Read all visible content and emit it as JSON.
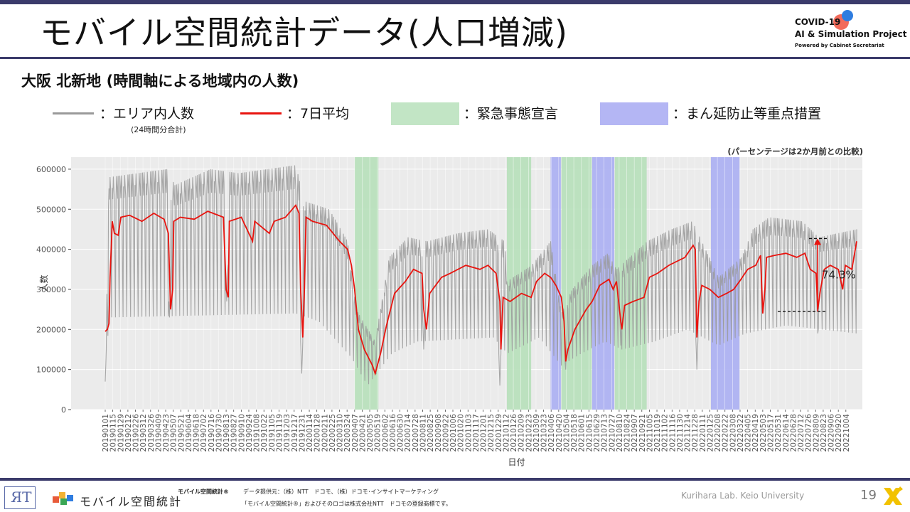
{
  "header": {
    "title": "モバイル空間統計データ(人口増減)",
    "logo_line1": "COVID-19",
    "logo_line2": "AI & Simulation Project",
    "logo_line3": "Powered by Cabinet Secretariat"
  },
  "subtitle": "大阪 北新地 (時間軸による地域内の人数)",
  "legend": {
    "area_count_label": "：エリア内人数",
    "area_count_note": "(24時間分合計)",
    "avg7_label": "：7日平均",
    "emergency_label": "：緊急事態宣言",
    "priority_label": "：まん延防止等重点措置"
  },
  "colors": {
    "raw_series": "#9a9a9a",
    "avg_series": "#e8140f",
    "emergency_band": "#b9e0bd",
    "priority_band": "#aeb2f2",
    "panel_bg": "#ebebeb",
    "header_rule": "#3b3b6b"
  },
  "chart_data": {
    "type": "line",
    "percent_note": "(パーセンテージは2か月前との比較)",
    "xlabel": "日付",
    "ylabel": "人数",
    "ylim": [
      0,
      630000
    ],
    "yticks": [
      0,
      100000,
      200000,
      300000,
      400000,
      500000,
      600000
    ],
    "ytick_labels": [
      "0",
      "100000",
      "200000",
      "300000",
      "400000",
      "500000",
      "600000"
    ],
    "x_start": "2019-01-01",
    "x_end": "2022-10-24",
    "x_tick_labels": [
      "20190101",
      "20190115",
      "20190129",
      "20190212",
      "20190226",
      "20190312",
      "20190326",
      "20190409",
      "20190423",
      "20190507",
      "20190521",
      "20190604",
      "20190618",
      "20190702",
      "20190716",
      "20190730",
      "20190813",
      "20190827",
      "20190910",
      "20190924",
      "20191008",
      "20191022",
      "20191105",
      "20191119",
      "20191203",
      "20191217",
      "20191231",
      "20200114",
      "20200128",
      "20200211",
      "20200225",
      "20200310",
      "20200324",
      "20200407",
      "20200421",
      "20200505",
      "20200519",
      "20200602",
      "20200616",
      "20200630",
      "20200714",
      "20200728",
      "20200811",
      "20200825",
      "20200908",
      "20200922",
      "20201006",
      "20201020",
      "20201103",
      "20201117",
      "20201201",
      "20201215",
      "20201229",
      "20210112",
      "20210126",
      "20210209",
      "20210223",
      "20210309",
      "20210323",
      "20210406",
      "20210420",
      "20210504",
      "20210518",
      "20210601",
      "20210615",
      "20210629",
      "20210713",
      "20210727",
      "20210810",
      "20210824",
      "20210907",
      "20210921",
      "20211005",
      "20211019",
      "20211102",
      "20211116",
      "20211130",
      "20211214",
      "20211228",
      "20220111",
      "20220125",
      "20220208",
      "20220222",
      "20220308",
      "20220322",
      "20220405",
      "20220419",
      "20220503",
      "20220517",
      "20220531",
      "20220614",
      "20220628",
      "20220712",
      "20220726",
      "20220809",
      "20220823",
      "20220906",
      "20220920",
      "20221004"
    ],
    "emergency_periods": [
      [
        "2020-04-07",
        "2020-05-21"
      ],
      [
        "2021-01-14",
        "2021-02-28"
      ],
      [
        "2021-04-25",
        "2021-06-20"
      ],
      [
        "2021-08-02",
        "2021-09-30"
      ]
    ],
    "priority_periods": [
      [
        "2021-04-05",
        "2021-04-24"
      ],
      [
        "2021-06-21",
        "2021-08-01"
      ],
      [
        "2022-01-27",
        "2022-03-21"
      ]
    ],
    "series": [
      {
        "name": "エリア内人数",
        "kind": "daily",
        "weekday_high_segments": [
          [
            "2019-01-01",
            70000
          ],
          [
            "2019-01-08",
            580000
          ],
          [
            "2019-04-25",
            600000
          ],
          [
            "2019-05-10",
            560000
          ],
          [
            "2019-07-15",
            600000
          ],
          [
            "2019-09-05",
            590000
          ],
          [
            "2019-12-20",
            610000
          ],
          [
            "2020-01-05",
            520000
          ],
          [
            "2020-02-20",
            500000
          ],
          [
            "2020-03-25",
            420000
          ],
          [
            "2020-04-10",
            250000
          ],
          [
            "2020-05-15",
            170000
          ],
          [
            "2020-06-10",
            380000
          ],
          [
            "2020-07-15",
            430000
          ],
          [
            "2020-08-20",
            420000
          ],
          [
            "2020-10-15",
            440000
          ],
          [
            "2020-12-10",
            450000
          ],
          [
            "2021-01-10",
            420000
          ],
          [
            "2021-01-14",
            320000
          ],
          [
            "2021-03-01",
            360000
          ],
          [
            "2021-04-05",
            420000
          ],
          [
            "2021-04-25",
            240000
          ],
          [
            "2021-05-15",
            300000
          ],
          [
            "2021-06-21",
            360000
          ],
          [
            "2021-07-20",
            390000
          ],
          [
            "2021-08-05",
            350000
          ],
          [
            "2021-10-01",
            420000
          ],
          [
            "2021-11-15",
            450000
          ],
          [
            "2021-12-24",
            470000
          ],
          [
            "2022-01-10",
            420000
          ],
          [
            "2022-02-10",
            330000
          ],
          [
            "2022-03-25",
            380000
          ],
          [
            "2022-04-15",
            450000
          ],
          [
            "2022-05-15",
            480000
          ],
          [
            "2022-07-15",
            470000
          ],
          [
            "2022-08-15",
            430000
          ],
          [
            "2022-10-24",
            450000
          ]
        ],
        "weekend_low_segments": [
          [
            "2019-01-01",
            70000
          ],
          [
            "2019-01-08",
            230000
          ],
          [
            "2019-12-20",
            240000
          ],
          [
            "2020-02-01",
            220000
          ],
          [
            "2020-04-01",
            130000
          ],
          [
            "2020-05-01",
            60000
          ],
          [
            "2020-06-15",
            140000
          ],
          [
            "2020-08-01",
            170000
          ],
          [
            "2020-12-20",
            180000
          ],
          [
            "2021-01-15",
            140000
          ],
          [
            "2021-03-15",
            180000
          ],
          [
            "2021-04-25",
            110000
          ],
          [
            "2021-06-01",
            140000
          ],
          [
            "2021-07-15",
            170000
          ],
          [
            "2021-08-15",
            150000
          ],
          [
            "2021-10-15",
            170000
          ],
          [
            "2021-12-15",
            200000
          ],
          [
            "2022-02-10",
            160000
          ],
          [
            "2022-04-01",
            190000
          ],
          [
            "2022-06-15",
            210000
          ],
          [
            "2022-10-24",
            190000
          ]
        ],
        "special_dips": [
          [
            "2019-01-01",
            70000
          ],
          [
            "2019-04-30",
            230000
          ],
          [
            "2019-08-14",
            270000
          ],
          [
            "2019-12-31",
            90000
          ],
          [
            "2020-08-13",
            150000
          ],
          [
            "2021-01-01",
            60000
          ],
          [
            "2021-05-03",
            100000
          ],
          [
            "2021-08-13",
            160000
          ],
          [
            "2022-01-01",
            100000
          ],
          [
            "2022-08-13",
            190000
          ]
        ]
      },
      {
        "name": "7日平均",
        "kind": "rolling",
        "points": [
          [
            "2019-01-01",
            195000
          ],
          [
            "2019-01-05",
            200000
          ],
          [
            "2019-01-08",
            215000
          ],
          [
            "2019-01-10",
            330000
          ],
          [
            "2019-01-14",
            470000
          ],
          [
            "2019-01-18",
            440000
          ],
          [
            "2019-01-25",
            435000
          ],
          [
            "2019-01-30",
            480000
          ],
          [
            "2019-02-15",
            485000
          ],
          [
            "2019-03-10",
            470000
          ],
          [
            "2019-04-01",
            490000
          ],
          [
            "2019-04-20",
            475000
          ],
          [
            "2019-04-28",
            440000
          ],
          [
            "2019-05-02",
            250000
          ],
          [
            "2019-05-06",
            300000
          ],
          [
            "2019-05-08",
            470000
          ],
          [
            "2019-05-20",
            480000
          ],
          [
            "2019-06-15",
            475000
          ],
          [
            "2019-07-10",
            495000
          ],
          [
            "2019-08-08",
            480000
          ],
          [
            "2019-08-13",
            300000
          ],
          [
            "2019-08-17",
            280000
          ],
          [
            "2019-08-19",
            470000
          ],
          [
            "2019-09-10",
            480000
          ],
          [
            "2019-10-01",
            420000
          ],
          [
            "2019-10-05",
            470000
          ],
          [
            "2019-11-01",
            440000
          ],
          [
            "2019-11-10",
            470000
          ],
          [
            "2019-12-01",
            480000
          ],
          [
            "2019-12-20",
            510000
          ],
          [
            "2019-12-26",
            490000
          ],
          [
            "2019-12-29",
            300000
          ],
          [
            "2020-01-02",
            180000
          ],
          [
            "2020-01-05",
            300000
          ],
          [
            "2020-01-08",
            480000
          ],
          [
            "2020-01-20",
            470000
          ],
          [
            "2020-02-15",
            460000
          ],
          [
            "2020-03-10",
            420000
          ],
          [
            "2020-03-25",
            400000
          ],
          [
            "2020-04-01",
            360000
          ],
          [
            "2020-04-07",
            300000
          ],
          [
            "2020-04-14",
            200000
          ],
          [
            "2020-04-25",
            150000
          ],
          [
            "2020-05-10",
            110000
          ],
          [
            "2020-05-15",
            90000
          ],
          [
            "2020-05-25",
            140000
          ],
          [
            "2020-06-05",
            210000
          ],
          [
            "2020-06-20",
            290000
          ],
          [
            "2020-07-10",
            320000
          ],
          [
            "2020-07-25",
            350000
          ],
          [
            "2020-08-10",
            340000
          ],
          [
            "2020-08-13",
            250000
          ],
          [
            "2020-08-18",
            200000
          ],
          [
            "2020-08-24",
            290000
          ],
          [
            "2020-09-15",
            330000
          ],
          [
            "2020-10-01",
            340000
          ],
          [
            "2020-10-30",
            360000
          ],
          [
            "2020-11-25",
            350000
          ],
          [
            "2020-12-10",
            360000
          ],
          [
            "2020-12-25",
            340000
          ],
          [
            "2021-01-01",
            270000
          ],
          [
            "2021-01-03",
            150000
          ],
          [
            "2021-01-07",
            280000
          ],
          [
            "2021-01-20",
            270000
          ],
          [
            "2021-02-10",
            290000
          ],
          [
            "2021-02-28",
            280000
          ],
          [
            "2021-03-10",
            320000
          ],
          [
            "2021-03-25",
            340000
          ],
          [
            "2021-04-05",
            330000
          ],
          [
            "2021-04-15",
            310000
          ],
          [
            "2021-04-25",
            280000
          ],
          [
            "2021-04-30",
            220000
          ],
          [
            "2021-05-03",
            120000
          ],
          [
            "2021-05-07",
            150000
          ],
          [
            "2021-05-20",
            200000
          ],
          [
            "2021-06-10",
            250000
          ],
          [
            "2021-06-21",
            270000
          ],
          [
            "2021-07-05",
            310000
          ],
          [
            "2021-07-22",
            325000
          ],
          [
            "2021-07-30",
            300000
          ],
          [
            "2021-08-05",
            320000
          ],
          [
            "2021-08-13",
            220000
          ],
          [
            "2021-08-15",
            200000
          ],
          [
            "2021-08-20",
            260000
          ],
          [
            "2021-09-05",
            270000
          ],
          [
            "2021-09-25",
            280000
          ],
          [
            "2021-10-05",
            330000
          ],
          [
            "2021-10-20",
            340000
          ],
          [
            "2021-11-10",
            360000
          ],
          [
            "2021-11-25",
            370000
          ],
          [
            "2021-12-10",
            380000
          ],
          [
            "2021-12-25",
            410000
          ],
          [
            "2021-12-29",
            400000
          ],
          [
            "2022-01-01",
            180000
          ],
          [
            "2022-01-05",
            270000
          ],
          [
            "2022-01-10",
            310000
          ],
          [
            "2022-01-25",
            300000
          ],
          [
            "2022-02-10",
            280000
          ],
          [
            "2022-02-25",
            290000
          ],
          [
            "2022-03-10",
            300000
          ],
          [
            "2022-03-21",
            320000
          ],
          [
            "2022-04-05",
            350000
          ],
          [
            "2022-04-20",
            360000
          ],
          [
            "2022-04-29",
            385000
          ],
          [
            "2022-05-03",
            240000
          ],
          [
            "2022-05-07",
            300000
          ],
          [
            "2022-05-10",
            380000
          ],
          [
            "2022-05-25",
            385000
          ],
          [
            "2022-06-15",
            390000
          ],
          [
            "2022-07-05",
            380000
          ],
          [
            "2022-07-20",
            390000
          ],
          [
            "2022-07-30",
            350000
          ],
          [
            "2022-08-10",
            340000
          ],
          [
            "2022-08-13",
            250000
          ],
          [
            "2022-08-18",
            300000
          ],
          [
            "2022-08-25",
            350000
          ],
          [
            "2022-09-05",
            360000
          ],
          [
            "2022-09-20",
            350000
          ],
          [
            "2022-09-28",
            300000
          ],
          [
            "2022-10-03",
            360000
          ],
          [
            "2022-10-15",
            350000
          ],
          [
            "2022-10-24",
            420000
          ]
        ]
      }
    ],
    "annotation": {
      "label": "74.3%",
      "from_value": 245000,
      "to_value": 427000
    }
  },
  "footer": {
    "mobile_logo_text": "モバイル空間統計",
    "mobile_brand": "モバイル空間統計®",
    "source": "データ提供元：（株）NTT　ドコモ、（株）ドコモ･インサイトマーケティング",
    "trademark": "「モバイル空間統計®」およびそのロゴは株式会社NTT　ドコモの登録商標です。",
    "credit": "Kurihara Lab. Keio University",
    "page_number": "19"
  }
}
